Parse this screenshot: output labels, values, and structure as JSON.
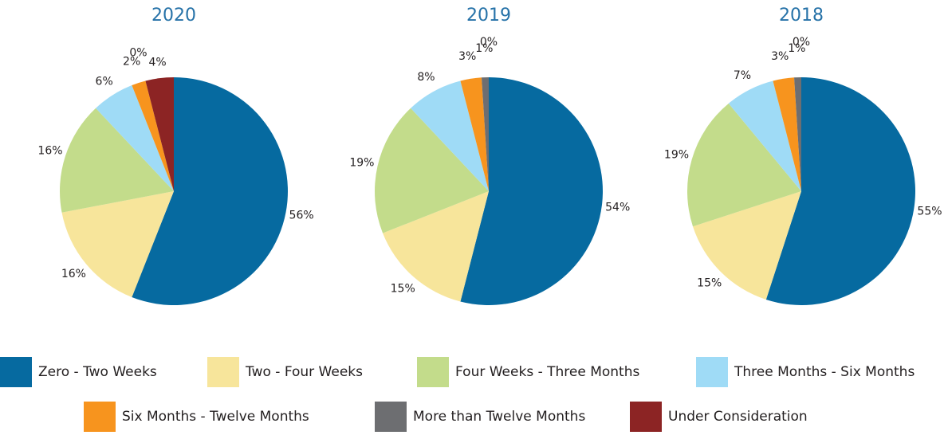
{
  "chart_data": [
    {
      "type": "pie",
      "title": "2020",
      "categories": [
        "Zero - Two Weeks",
        "Two - Four Weeks",
        "Four Weeks - Three Months",
        "Three Months - Six Months",
        "Six Months - Twelve Months",
        "More than Twelve Months",
        "Under Consideration"
      ],
      "values": [
        56,
        16,
        16,
        6,
        2,
        0,
        4
      ],
      "value_labels": [
        "56%",
        "16%",
        "16%",
        "6%",
        "2%",
        "0%",
        "4%"
      ],
      "colors": [
        "#066aa0",
        "#f7e59b",
        "#c3dc8b",
        "#9fdbf6",
        "#f7941e",
        "#6d6e71",
        "#8c2424"
      ]
    },
    {
      "type": "pie",
      "title": "2019",
      "categories": [
        "Zero - Two Weeks",
        "Two - Four Weeks",
        "Four Weeks - Three Months",
        "Three Months - Six Months",
        "Six Months - Twelve Months",
        "More than Twelve Months",
        "Under Consideration"
      ],
      "values": [
        54,
        15,
        19,
        8,
        3,
        1,
        0
      ],
      "value_labels": [
        "54%",
        "15%",
        "19%",
        "8%",
        "3%",
        "1%",
        "0%"
      ],
      "colors": [
        "#066aa0",
        "#f7e59b",
        "#c3dc8b",
        "#9fdbf6",
        "#f7941e",
        "#6d6e71",
        "#8c2424"
      ]
    },
    {
      "type": "pie",
      "title": "2018",
      "categories": [
        "Zero - Two Weeks",
        "Two - Four Weeks",
        "Four Weeks - Three Months",
        "Three Months - Six Months",
        "Six Months - Twelve Months",
        "More than Twelve Months",
        "Under Consideration"
      ],
      "values": [
        55,
        15,
        19,
        7,
        3,
        1,
        0
      ],
      "value_labels": [
        "55%",
        "15%",
        "19%",
        "7%",
        "3%",
        "1%",
        "0%"
      ],
      "colors": [
        "#066aa0",
        "#f7e59b",
        "#c3dc8b",
        "#9fdbf6",
        "#f7941e",
        "#6d6e71",
        "#8c2424"
      ]
    }
  ]
}
